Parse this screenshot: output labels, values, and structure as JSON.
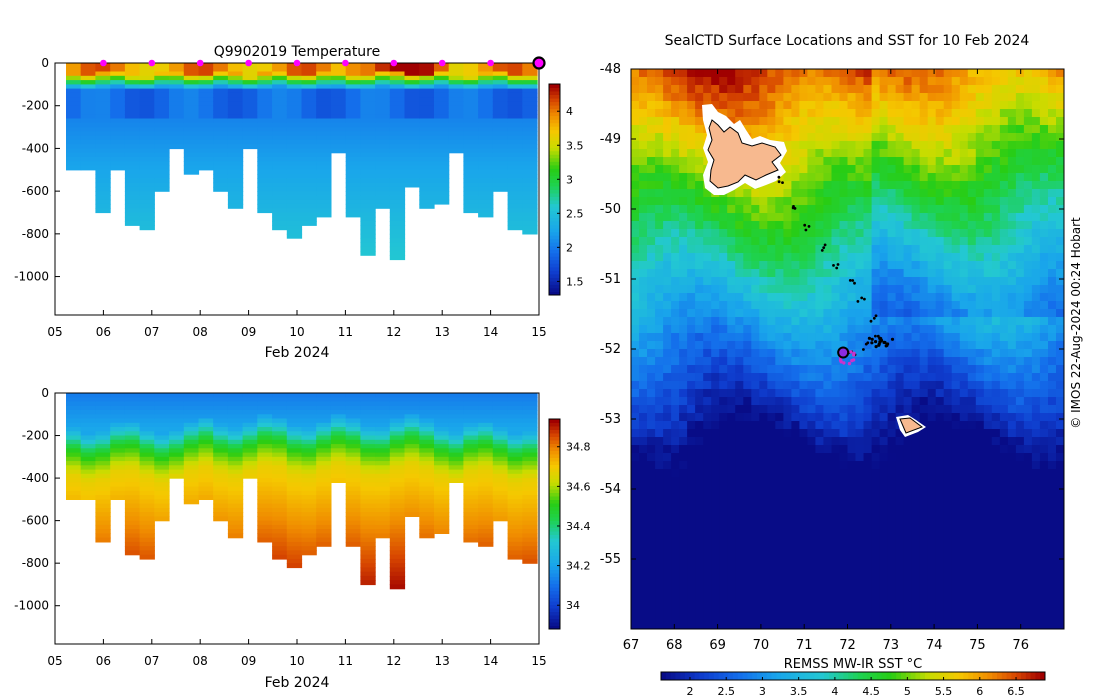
{
  "chart_data": [
    {
      "type": "heatmap",
      "title": "Q9902019  Temperature",
      "xlabel": "Feb 2024",
      "ylabel": "",
      "x_ticks": [
        "05",
        "06",
        "07",
        "08",
        "09",
        "10",
        "11",
        "12",
        "13",
        "14",
        "15"
      ],
      "xlim": [
        5,
        15
      ],
      "y_ticks": [
        "0",
        "-200",
        "-400",
        "-600",
        "-800",
        "-1000"
      ],
      "ylim": [
        -1180,
        0
      ],
      "colorbar": {
        "ticks": [
          "4",
          "3.5",
          "3",
          "2.5",
          "2",
          "1.5"
        ],
        "range": [
          1.3,
          4.4
        ]
      },
      "profile_max_depth": [
        500,
        500,
        700,
        500,
        750,
        770,
        600,
        400,
        510,
        500,
        600,
        670,
        400,
        700,
        780,
        820,
        760,
        720,
        420,
        710,
        900,
        680,
        910,
        580,
        670,
        650,
        420,
        700,
        710,
        600,
        780,
        800
      ],
      "marker_days": [
        6,
        7,
        8,
        9,
        10,
        11,
        12,
        13,
        14
      ],
      "current_day": 15
    },
    {
      "type": "heatmap",
      "title": "",
      "xlabel": "Feb 2024",
      "ylabel": "",
      "x_ticks": [
        "05",
        "06",
        "07",
        "08",
        "09",
        "10",
        "11",
        "12",
        "13",
        "14",
        "15"
      ],
      "xlim": [
        5,
        15
      ],
      "y_ticks": [
        "0",
        "-200",
        "-400",
        "-600",
        "-800",
        "-1000"
      ],
      "ylim": [
        -1180,
        0
      ],
      "colorbar": {
        "ticks": [
          "34.8",
          "34.6",
          "34.4",
          "34.2",
          "34"
        ],
        "range": [
          33.88,
          34.94
        ]
      },
      "profile_max_depth": [
        500,
        500,
        700,
        500,
        750,
        770,
        600,
        400,
        510,
        500,
        600,
        670,
        400,
        700,
        780,
        820,
        760,
        720,
        420,
        710,
        900,
        680,
        910,
        580,
        670,
        650,
        420,
        700,
        710,
        600,
        780,
        800
      ]
    },
    {
      "type": "heatmap",
      "title": "SealCTD Surface Locations and SST for 10 Feb 2024",
      "xlabel": "",
      "ylabel": "",
      "x_ticks": [
        "67",
        "68",
        "69",
        "70",
        "71",
        "72",
        "73",
        "74",
        "75",
        "76"
      ],
      "xlim": [
        67,
        77
      ],
      "y_ticks": [
        "-48",
        "-49",
        "-50",
        "-51",
        "-52",
        "-53",
        "-54",
        "-55"
      ],
      "ylim": [
        -56,
        -48
      ],
      "colorbar": {
        "label": "REMSS MW-IR SST °C",
        "ticks": [
          "2",
          "2.5",
          "3",
          "3.5",
          "4",
          "4.5",
          "5",
          "5.5",
          "6",
          "6.5"
        ],
        "range": [
          1.6,
          6.9
        ]
      },
      "seal_position": [
        71.9,
        -52.05
      ],
      "credit": "© IMOS 22-Aug-2024 00:24 Hobart"
    }
  ]
}
